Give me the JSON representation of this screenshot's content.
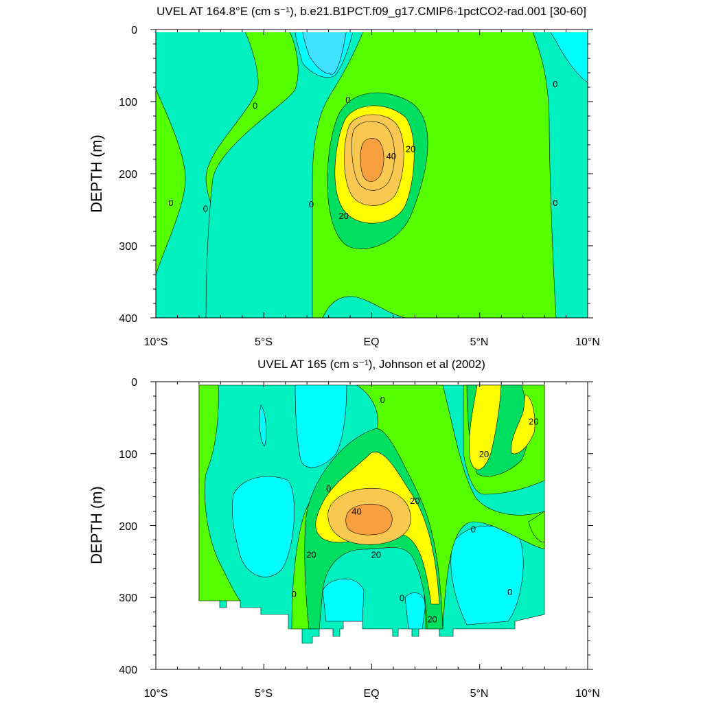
{
  "chart_data": [
    {
      "type": "contour",
      "title": "UVEL AT 164.8°E (cm s⁻¹), b.e21.B1PCT.f09_g17.CMIP6-1pctCO2-rad.001 [30-60]",
      "ylabel": "DEPTH (m)",
      "xlim": [
        -10,
        10
      ],
      "ylim": [
        0,
        400
      ],
      "y_inverted": true,
      "xticks": [
        "10°S",
        "5°S",
        "EQ",
        "5°N",
        "10°N"
      ],
      "yticks": [
        "0",
        "100",
        "200",
        "300",
        "400"
      ],
      "contour_interval": 10,
      "colors": {
        "lt_minus20": "#40E0FF",
        "minus20_minus10": "#00FFFF",
        "minus10_0": "#00F0C0",
        "0_10": "#55FF00",
        "10_20": "#00E060",
        "20_30": "#FFFF00",
        "30_40": "#F8C850",
        "40_50": "#F8A040"
      },
      "contour_labels": [
        {
          "text": "0",
          "lon": -5.4,
          "depth": 105
        },
        {
          "text": "0",
          "lon": -1.1,
          "depth": 97
        },
        {
          "text": "0",
          "lon": 8.5,
          "depth": 75
        },
        {
          "text": "0",
          "lon": -9.3,
          "depth": 240
        },
        {
          "text": "0",
          "lon": -7.7,
          "depth": 248
        },
        {
          "text": "0",
          "lon": -2.8,
          "depth": 242
        },
        {
          "text": "0",
          "lon": 8.5,
          "depth": 240
        },
        {
          "text": "20",
          "lon": 1.8,
          "depth": 165
        },
        {
          "text": "40",
          "lon": 0.9,
          "depth": 175
        },
        {
          "text": "20",
          "lon": -1.3,
          "depth": 258
        }
      ]
    },
    {
      "type": "contour",
      "title": "UVEL AT 165 (cm s⁻¹), Johnson et al (2002)",
      "ylabel": "DEPTH (m)",
      "xlim": [
        -10,
        10
      ],
      "ylim": [
        0,
        400
      ],
      "y_inverted": true,
      "xticks": [
        "10°S",
        "5°S",
        "EQ",
        "5°N",
        "10°N"
      ],
      "yticks": [
        "0",
        "100",
        "200",
        "300",
        "400"
      ],
      "contour_interval": 10,
      "contour_labels": [
        {
          "text": "0",
          "lon": 0.5,
          "depth": 25
        },
        {
          "text": "20",
          "lon": 7.5,
          "depth": 55
        },
        {
          "text": "20",
          "lon": 5.2,
          "depth": 100
        },
        {
          "text": "0",
          "lon": -2.0,
          "depth": 148
        },
        {
          "text": "20",
          "lon": 2.0,
          "depth": 165
        },
        {
          "text": "40",
          "lon": -0.7,
          "depth": 180
        },
        {
          "text": "0",
          "lon": 4.7,
          "depth": 205
        },
        {
          "text": "20",
          "lon": -2.8,
          "depth": 240
        },
        {
          "text": "20",
          "lon": 0.2,
          "depth": 240
        },
        {
          "text": "0",
          "lon": -3.6,
          "depth": 295
        },
        {
          "text": "0",
          "lon": 1.4,
          "depth": 300
        },
        {
          "text": "0",
          "lon": 6.4,
          "depth": 292
        },
        {
          "text": "20",
          "lon": 2.8,
          "depth": 330
        }
      ]
    }
  ]
}
